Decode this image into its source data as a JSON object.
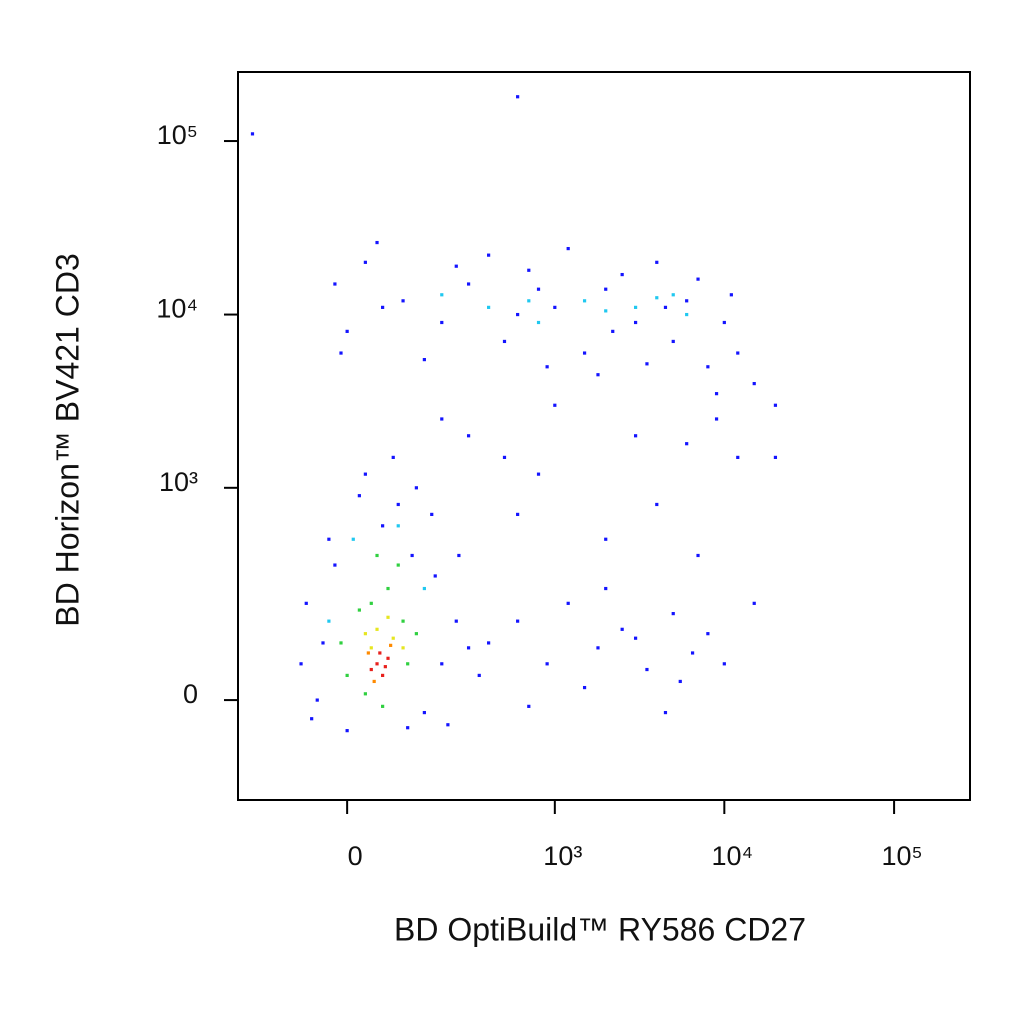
{
  "chart_data": {
    "type": "scatter",
    "x_label": "BD OptiBuild™ RY586 CD27",
    "y_label": "BD Horizon™ BV421 CD3",
    "scale": "biexponential",
    "xlim": [
      -250,
      280000
    ],
    "ylim": [
      -210,
      250000
    ],
    "xticks": [
      0,
      {
        "value": 1000,
        "label": "10³"
      },
      {
        "value": 10000,
        "label": "10⁴"
      },
      {
        "value": 100000,
        "label": "10⁵"
      }
    ],
    "yticks": [
      0,
      {
        "value": 1000,
        "label": "10³"
      },
      {
        "value": 10000,
        "label": "10⁴"
      },
      {
        "value": 100000,
        "label": "10⁵"
      }
    ],
    "series": [
      {
        "color": "#1414ff",
        "x": [
          -60,
          -40,
          -70,
          150,
          200,
          250,
          120,
          60,
          -20,
          180,
          90,
          30,
          -50,
          220,
          0,
          300,
          130,
          80,
          -30,
          260,
          -80,
          170,
          20,
          110,
          -20,
          0,
          30,
          100,
          200,
          300,
          500,
          700,
          1000,
          1500,
          2000,
          3000,
          4000,
          5000,
          6000,
          8000,
          10000,
          12000,
          15000,
          400,
          900,
          2500,
          150,
          60,
          7000,
          3500,
          1200,
          250,
          -10,
          600,
          11000,
          20000,
          9000,
          1800,
          50,
          4500,
          800,
          2200,
          300,
          500,
          1000,
          200,
          800,
          3000,
          6000,
          9000,
          12000,
          600,
          2000,
          4000,
          7000,
          400,
          600,
          900,
          1200,
          1800,
          2500,
          3500,
          5000,
          6500,
          8000,
          700,
          1500,
          3000,
          4500,
          10000,
          350,
          2000,
          5500,
          -200,
          600,
          15000,
          20000
        ],
        "values": [
          -30,
          100,
          200,
          -20,
          60,
          150,
          400,
          600,
          350,
          300,
          800,
          1200,
          0,
          -40,
          -50,
          90,
          1000,
          1500,
          500,
          400,
          60,
          700,
          900,
          -45,
          15000,
          8000,
          20000,
          12000,
          9000,
          15000,
          7000,
          18000,
          11000,
          6000,
          14000,
          9000,
          20000,
          7000,
          12000,
          5000,
          9000,
          6000,
          4000,
          22000,
          5000,
          17000,
          5500,
          11000,
          16000,
          5200,
          24000,
          19000,
          6000,
          10000,
          13000,
          3000,
          3500,
          4500,
          26000,
          11000,
          14000,
          8000,
          2000,
          1500,
          3000,
          2500,
          1200,
          2000,
          1800,
          2500,
          1500,
          700,
          500,
          800,
          400,
          100,
          150,
          60,
          200,
          90,
          130,
          50,
          170,
          80,
          120,
          -10,
          20,
          110,
          -20,
          60,
          40,
          250,
          30,
          110000,
          180000,
          200,
          1500
        ]
      },
      {
        "color": "#20c8f0",
        "x": [
          200,
          400,
          800,
          1500,
          3000,
          5000,
          6000,
          700,
          2000,
          4000,
          10,
          150,
          -30,
          90
        ],
        "values": [
          13000,
          11000,
          9000,
          12000,
          11000,
          13000,
          10000,
          12000,
          10500,
          12500,
          500,
          250,
          150,
          600
        ]
      },
      {
        "color": "#30d040",
        "x": [
          40,
          70,
          100,
          20,
          90,
          50,
          130,
          -10,
          60,
          30,
          110,
          0
        ],
        "values": [
          200,
          250,
          150,
          180,
          350,
          400,
          120,
          100,
          -10,
          10,
          60,
          40
        ]
      },
      {
        "color": "#e6e620",
        "x": [
          50,
          80,
          30,
          70,
          40,
          100
        ],
        "values": [
          130,
          110,
          120,
          160,
          90,
          90
        ]
      },
      {
        "color": "#ff8a00",
        "x": [
          45,
          75,
          35
        ],
        "values": [
          30,
          95,
          80
        ]
      },
      {
        "color": "#e8201c",
        "x": [
          50,
          60,
          40,
          70,
          55,
          65
        ],
        "values": [
          60,
          40,
          50,
          70,
          80,
          55
        ]
      }
    ]
  }
}
